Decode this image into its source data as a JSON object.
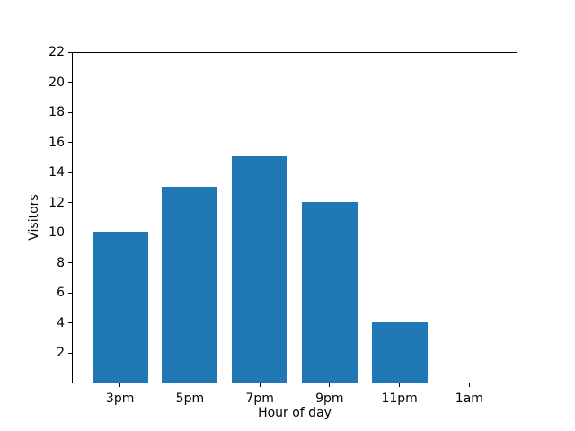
{
  "chart_data": {
    "type": "bar",
    "categories": [
      "3pm",
      "5pm",
      "7pm",
      "9pm",
      "11pm",
      "1am"
    ],
    "values": [
      10,
      13,
      15,
      12,
      4,
      0
    ],
    "title": "",
    "xlabel": "Hour of day",
    "ylabel": "Visitors",
    "ylim": [
      0,
      22
    ],
    "yticks": [
      2,
      4,
      6,
      8,
      10,
      12,
      14,
      16,
      18,
      20,
      22
    ],
    "bar_color": "#1f77b4",
    "axis_color": "#000000",
    "background_color": "#ffffff",
    "grid": false,
    "legend": null
  }
}
